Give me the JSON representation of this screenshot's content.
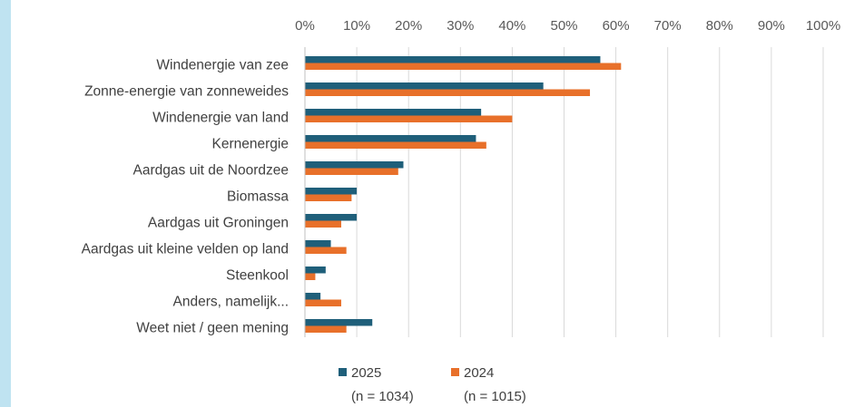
{
  "chart_data": {
    "type": "bar",
    "orientation": "horizontal",
    "categories": [
      "Windenergie van zee",
      "Zonne-energie van zonneweides",
      "Windenergie van land",
      "Kernenergie",
      "Aardgas uit de Noordzee",
      "Biomassa",
      "Aardgas uit Groningen",
      "Aardgas uit kleine velden op land",
      "Steenkool",
      "Anders, namelijk...",
      "Weet niet / geen mening"
    ],
    "series": [
      {
        "name": "2025",
        "sample": "(n = 1034)",
        "color": "#1f5f7a",
        "values": [
          57,
          46,
          34,
          33,
          19,
          10,
          10,
          5,
          4,
          3,
          13
        ]
      },
      {
        "name": "2024",
        "sample": "(n = 1015)",
        "color": "#e8702a",
        "values": [
          61,
          55,
          40,
          35,
          18,
          9,
          7,
          8,
          2,
          7,
          8
        ]
      }
    ],
    "xlim": [
      0,
      100
    ],
    "xticks": [
      "0%",
      "10%",
      "20%",
      "30%",
      "40%",
      "50%",
      "60%",
      "70%",
      "80%",
      "90%",
      "100%"
    ],
    "grid": true,
    "legend_position": "bottom"
  }
}
